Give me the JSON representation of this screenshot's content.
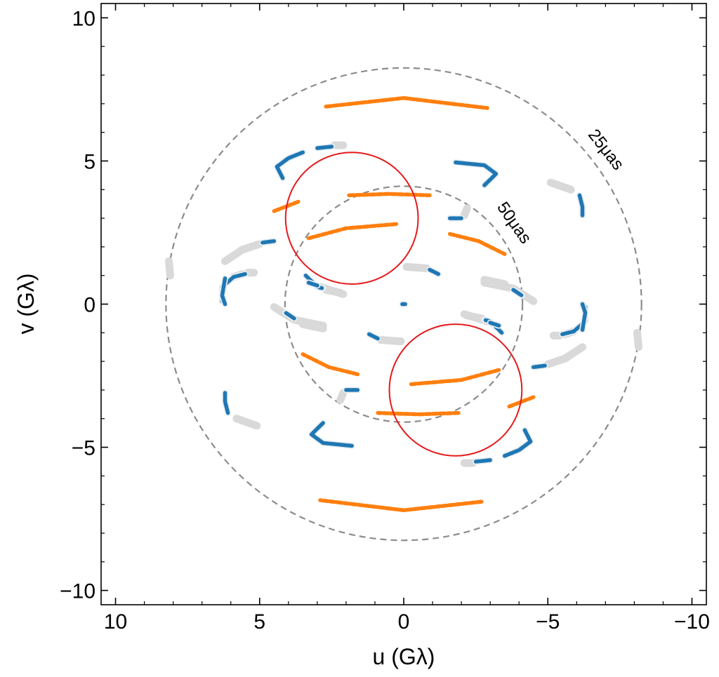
{
  "chart_data": {
    "type": "scatter",
    "title": "",
    "xlabel": "u (Gλ)",
    "ylabel": "v (Gλ)",
    "xlim": [
      10.5,
      -10.5
    ],
    "ylim": [
      -10.5,
      10.5
    ],
    "x_inverted": true,
    "grid": false,
    "x_ticks": [
      10,
      5,
      0,
      -5,
      -10
    ],
    "y_ticks": [
      10,
      5,
      0,
      -5,
      -10
    ],
    "x_tick_labels": [
      "10",
      "5",
      "0",
      "−5",
      "−10"
    ],
    "y_tick_labels": [
      "10",
      "5",
      "0",
      "−5",
      "−10"
    ],
    "colors": {
      "blue": "#1f77b4",
      "orange": "#ff7f0e",
      "gray": "#d9d9d9",
      "gray_outline": "#e8eef2",
      "dashed": "#8c8c8c",
      "red": "#e41a1c"
    },
    "reference_circles": [
      {
        "label": "25μas",
        "center": [
          0,
          0
        ],
        "radius": 8.25,
        "style": "dashed",
        "color": "#8c8c8c"
      },
      {
        "label": "50μas",
        "center": [
          0,
          0
        ],
        "radius": 4.12,
        "style": "dashed",
        "color": "#8c8c8c"
      }
    ],
    "highlight_circles": [
      {
        "center": [
          1.8,
          3.0
        ],
        "radius": 2.3,
        "color": "#e41a1c"
      },
      {
        "center": [
          -1.8,
          -3.0
        ],
        "radius": 2.3,
        "color": "#e41a1c"
      }
    ],
    "tracks": [
      {
        "color": "orange",
        "segments": [
          [
            [
              2.7,
              6.9
            ],
            [
              0,
              7.2
            ],
            [
              -2.9,
              6.85
            ]
          ]
        ]
      },
      {
        "color": "orange",
        "segments": [
          [
            [
              -2.7,
              -6.9
            ],
            [
              0,
              -7.2
            ],
            [
              2.9,
              -6.85
            ]
          ]
        ]
      },
      {
        "color": "orange",
        "segments": [
          [
            [
              3.3,
              2.3
            ],
            [
              2.0,
              2.65
            ],
            [
              0.2,
              2.8
            ]
          ],
          [
            [
              -1.6,
              2.45
            ],
            [
              -2.6,
              2.2
            ],
            [
              -3.5,
              1.75
            ]
          ]
        ]
      },
      {
        "color": "orange",
        "segments": [
          [
            [
              -3.3,
              -2.3
            ],
            [
              -2.0,
              -2.65
            ],
            [
              -0.2,
              -2.8
            ]
          ],
          [
            [
              1.6,
              -2.45
            ],
            [
              2.6,
              -2.2
            ],
            [
              3.5,
              -1.75
            ]
          ]
        ]
      },
      {
        "color": "orange",
        "segments": [
          [
            [
              4.5,
              3.25
            ],
            [
              3.6,
              3.6
            ]
          ],
          [
            [
              1.9,
              3.8
            ],
            [
              0.5,
              3.85
            ],
            [
              -0.9,
              3.8
            ]
          ]
        ]
      },
      {
        "color": "orange",
        "segments": [
          [
            [
              -4.5,
              -3.25
            ],
            [
              -3.6,
              -3.6
            ]
          ],
          [
            [
              -1.9,
              -3.8
            ],
            [
              -0.5,
              -3.85
            ],
            [
              0.9,
              -3.8
            ]
          ]
        ]
      },
      {
        "color": "blue",
        "segments": [
          [
            [
              4.2,
              4.4
            ],
            [
              4.4,
              4.8
            ],
            [
              4.0,
              5.1
            ],
            [
              3.5,
              5.3
            ]
          ],
          [
            [
              3.0,
              5.45
            ],
            [
              2.5,
              5.5
            ]
          ]
        ]
      },
      {
        "color": "gray",
        "segments": [
          [
            [
              2.4,
              5.55
            ],
            [
              2.1,
              5.55
            ]
          ]
        ]
      },
      {
        "color": "blue",
        "segments": [
          [
            [
              -4.2,
              -4.4
            ],
            [
              -4.4,
              -4.8
            ],
            [
              -4.0,
              -5.1
            ],
            [
              -3.5,
              -5.3
            ]
          ],
          [
            [
              -3.0,
              -5.45
            ],
            [
              -2.5,
              -5.5
            ]
          ]
        ]
      },
      {
        "color": "gray",
        "segments": [
          [
            [
              -2.4,
              -5.55
            ],
            [
              -2.1,
              -5.55
            ]
          ]
        ]
      },
      {
        "color": "blue",
        "segments": [
          [
            [
              -1.8,
              4.95
            ],
            [
              -2.8,
              4.85
            ],
            [
              -3.2,
              4.55
            ],
            [
              -2.8,
              4.15
            ]
          ]
        ]
      },
      {
        "color": "blue",
        "segments": [
          [
            [
              1.8,
              -4.95
            ],
            [
              2.8,
              -4.85
            ],
            [
              3.2,
              -4.55
            ],
            [
              2.8,
              -4.15
            ]
          ]
        ]
      },
      {
        "color": "gray",
        "segments": [
          [
            [
              -5.1,
              4.25
            ],
            [
              -5.8,
              4.0
            ]
          ]
        ]
      },
      {
        "color": "blue",
        "segments": [
          [
            [
              -6.1,
              3.8
            ],
            [
              -6.2,
              3.4
            ],
            [
              -6.2,
              3.1
            ]
          ]
        ]
      },
      {
        "color": "gray",
        "segments": [
          [
            [
              5.1,
              -4.25
            ],
            [
              5.8,
              -4.0
            ]
          ]
        ]
      },
      {
        "color": "blue",
        "segments": [
          [
            [
              6.1,
              -3.8
            ],
            [
              6.2,
              -3.4
            ],
            [
              6.2,
              -3.1
            ]
          ]
        ]
      },
      {
        "color": "gray",
        "segments": [
          [
            [
              8.1,
              1.0
            ],
            [
              8.15,
              1.5
            ]
          ]
        ]
      },
      {
        "color": "gray",
        "segments": [
          [
            [
              -8.1,
              -1.0
            ],
            [
              -8.15,
              -1.5
            ]
          ]
        ]
      },
      {
        "color": "gray",
        "segments": [
          [
            [
              6.2,
              1.5
            ],
            [
              5.6,
              1.9
            ],
            [
              5.0,
              2.1
            ]
          ]
        ]
      },
      {
        "color": "blue",
        "segments": [
          [
            [
              4.9,
              2.15
            ],
            [
              4.5,
              2.2
            ]
          ]
        ]
      },
      {
        "color": "gray",
        "segments": [
          [
            [
              -6.2,
              -1.5
            ],
            [
              -5.6,
              -1.9
            ],
            [
              -5.0,
              -2.1
            ]
          ]
        ]
      },
      {
        "color": "blue",
        "segments": [
          [
            [
              -4.9,
              -2.15
            ],
            [
              -4.5,
              -2.2
            ]
          ]
        ]
      },
      {
        "color": "blue",
        "segments": [
          [
            [
              6.3,
              0.1
            ],
            [
              6.3,
              0.6
            ],
            [
              5.9,
              0.95
            ],
            [
              5.5,
              1.05
            ]
          ]
        ]
      },
      {
        "color": "gray",
        "segments": [
          [
            [
              5.4,
              1.1
            ],
            [
              5.2,
              1.1
            ]
          ]
        ]
      },
      {
        "color": "blue",
        "segments": [
          [
            [
              -6.3,
              -0.1
            ],
            [
              -6.3,
              -0.6
            ],
            [
              -5.9,
              -0.95
            ],
            [
              -5.5,
              -1.05
            ]
          ]
        ]
      },
      {
        "color": "gray",
        "segments": [
          [
            [
              -5.4,
              -1.1
            ],
            [
              -5.2,
              -1.1
            ]
          ]
        ]
      },
      {
        "color": "blue",
        "segments": [
          [
            [
              3.4,
              1.0
            ],
            [
              3.0,
              0.6
            ],
            [
              2.8,
              0.55
            ]
          ]
        ]
      },
      {
        "color": "gray",
        "segments": [
          [
            [
              2.7,
              0.5
            ],
            [
              2.2,
              0.4
            ]
          ]
        ]
      },
      {
        "color": "blue",
        "segments": [
          [
            [
              -3.4,
              -1.0
            ],
            [
              -3.0,
              -0.6
            ],
            [
              -2.8,
              -0.55
            ]
          ]
        ]
      },
      {
        "color": "gray",
        "segments": [
          [
            [
              -2.7,
              -0.5
            ],
            [
              -2.2,
              -0.4
            ]
          ]
        ]
      },
      {
        "color": "gray",
        "segments": [
          [
            [
              -0.1,
              1.3
            ],
            [
              -0.8,
              1.25
            ]
          ]
        ]
      },
      {
        "color": "blue",
        "segments": [
          [
            [
              -0.9,
              1.2
            ],
            [
              -1.2,
              1.05
            ]
          ]
        ]
      },
      {
        "color": "gray",
        "segments": [
          [
            [
              0.1,
              -1.3
            ],
            [
              0.8,
              -1.25
            ]
          ]
        ]
      },
      {
        "color": "blue",
        "segments": [
          [
            [
              0.9,
              -1.2
            ],
            [
              1.2,
              -1.05
            ]
          ]
        ]
      },
      {
        "color": "gray",
        "segments": [
          [
            [
              -2.8,
              0.85
            ],
            [
              -3.5,
              0.7
            ]
          ]
        ]
      },
      {
        "color": "blue",
        "segments": [
          [
            [
              -3.8,
              0.5
            ],
            [
              -4.1,
              0.3
            ]
          ]
        ]
      },
      {
        "color": "gray",
        "segments": [
          [
            [
              2.8,
              -0.85
            ],
            [
              3.5,
              -0.7
            ]
          ]
        ]
      },
      {
        "color": "blue",
        "segments": [
          [
            [
              3.8,
              -0.5
            ],
            [
              4.1,
              -0.3
            ]
          ]
        ]
      },
      {
        "color": "gray",
        "segments": [
          [
            [
              -2.1,
              -0.35
            ],
            [
              -2.9,
              -0.6
            ]
          ]
        ]
      },
      {
        "color": "blue",
        "segments": [
          [
            [
              -3.0,
              -0.65
            ],
            [
              -3.3,
              -0.75
            ]
          ]
        ]
      },
      {
        "color": "gray",
        "segments": [
          [
            [
              2.1,
              0.35
            ],
            [
              2.9,
              0.6
            ]
          ]
        ]
      },
      {
        "color": "blue",
        "segments": [
          [
            [
              3.0,
              0.65
            ],
            [
              3.3,
              0.75
            ]
          ]
        ]
      },
      {
        "color": "gray",
        "segments": [
          [
            [
              4.5,
              -0.1
            ],
            [
              3.8,
              -0.55
            ],
            [
              2.8,
              -0.75
            ]
          ]
        ]
      },
      {
        "color": "gray",
        "segments": [
          [
            [
              -4.5,
              0.1
            ],
            [
              -3.8,
              0.55
            ],
            [
              -2.8,
              0.75
            ]
          ]
        ]
      },
      {
        "color": "blue",
        "segments": [
          [
            [
              -6.2,
              -0.9
            ],
            [
              -6.3,
              -0.3
            ],
            [
              -6.2,
              0.0
            ]
          ]
        ]
      },
      {
        "color": "gray",
        "segments": [
          [
            [
              -5.6,
              -1.05
            ],
            [
              -5.9,
              -0.95
            ]
          ]
        ]
      },
      {
        "color": "blue",
        "segments": [
          [
            [
              6.2,
              0.9
            ],
            [
              6.3,
              0.3
            ],
            [
              6.2,
              0.0
            ]
          ]
        ]
      },
      {
        "color": "gray",
        "segments": [
          [
            [
              5.6,
              1.05
            ],
            [
              5.9,
              0.95
            ]
          ]
        ]
      },
      {
        "color": "gray",
        "segments": [
          [
            [
              2.1,
              -3.1
            ],
            [
              2.2,
              -3.35
            ]
          ]
        ]
      },
      {
        "color": "blue",
        "segments": [
          [
            [
              2.0,
              -3.0
            ],
            [
              1.6,
              -3.0
            ]
          ]
        ]
      },
      {
        "color": "gray",
        "segments": [
          [
            [
              -2.1,
              3.1
            ],
            [
              -2.2,
              3.35
            ]
          ]
        ]
      },
      {
        "color": "blue",
        "segments": [
          [
            [
              -2.0,
              3.0
            ],
            [
              -1.6,
              3.0
            ]
          ]
        ]
      },
      {
        "color": "blue",
        "segments": [
          [
            [
              0.05,
              0.0
            ],
            [
              -0.05,
              0.0
            ]
          ]
        ]
      }
    ]
  }
}
